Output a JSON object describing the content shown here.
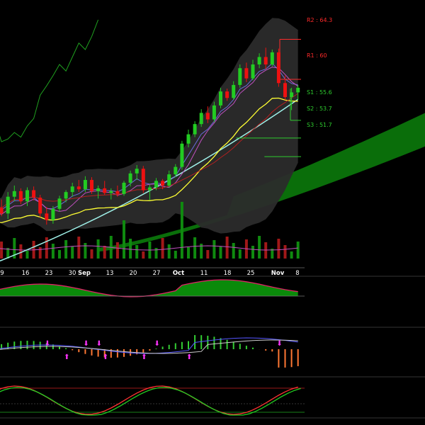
{
  "chart_data": {
    "type": "candlestick",
    "x_tick_labels": [
      "9",
      "16",
      "23",
      "30",
      "Sep",
      "13",
      "20",
      "27",
      "Oct",
      "11",
      "18",
      "25",
      "Nov",
      "8"
    ],
    "price_range": [
      40,
      67
    ],
    "levels": [
      {
        "name": "R2",
        "label": "R2 : 64.3",
        "value": 64.3,
        "color": "#ff2a2a"
      },
      {
        "name": "R1",
        "label": "R1 : 60",
        "value": 60.0,
        "color": "#ff2a2a"
      },
      {
        "name": "S1",
        "label": "S1 : 55.6",
        "value": 55.6,
        "color": "#2ecc2e"
      },
      {
        "name": "S2",
        "label": "S2 : 53.7",
        "value": 53.7,
        "color": "#2ecc2e"
      },
      {
        "name": "S3",
        "label": "S3 : 51.7",
        "value": 51.7,
        "color": "#2ecc2e"
      }
    ],
    "candles": [
      [
        45.2,
        46.8,
        44.6,
        46.2
      ],
      [
        46.2,
        47.1,
        45.3,
        45.6
      ],
      [
        45.6,
        47.9,
        45.0,
        47.4
      ],
      [
        47.4,
        48.6,
        46.9,
        48.0
      ],
      [
        48.0,
        48.3,
        46.6,
        46.9
      ],
      [
        46.9,
        48.4,
        46.4,
        48.1
      ],
      [
        48.1,
        48.5,
        47.0,
        47.3
      ],
      [
        47.3,
        47.6,
        45.2,
        45.6
      ],
      [
        45.6,
        46.3,
        44.4,
        44.9
      ],
      [
        44.9,
        46.4,
        44.5,
        46.1
      ],
      [
        46.1,
        47.5,
        45.8,
        47.2
      ],
      [
        47.2,
        48.1,
        46.8,
        47.9
      ],
      [
        47.9,
        48.9,
        47.4,
        48.5
      ],
      [
        48.5,
        49.2,
        47.9,
        48.2
      ],
      [
        48.2,
        49.6,
        47.9,
        49.2
      ],
      [
        49.2,
        49.5,
        47.7,
        48.0
      ],
      [
        48.0,
        48.6,
        47.2,
        48.3
      ],
      [
        48.3,
        49.1,
        47.6,
        47.8
      ],
      [
        47.8,
        48.3,
        47.1,
        48.0
      ],
      [
        48.0,
        48.6,
        47.4,
        47.7
      ],
      [
        47.7,
        49.1,
        47.5,
        48.9
      ],
      [
        48.9,
        50.2,
        48.5,
        49.9
      ],
      [
        49.9,
        50.8,
        49.2,
        50.4
      ],
      [
        50.4,
        50.7,
        47.8,
        48.1
      ],
      [
        48.1,
        48.7,
        47.0,
        48.4
      ],
      [
        48.4,
        49.4,
        48.1,
        49.1
      ],
      [
        49.1,
        49.3,
        48.2,
        48.6
      ],
      [
        48.6,
        50.2,
        48.4,
        49.8
      ],
      [
        49.8,
        50.9,
        49.5,
        50.6
      ],
      [
        50.6,
        53.4,
        50.3,
        53.1
      ],
      [
        53.1,
        54.6,
        52.7,
        54.1
      ],
      [
        54.1,
        55.5,
        53.8,
        55.2
      ],
      [
        55.2,
        56.8,
        54.9,
        56.4
      ],
      [
        56.4,
        57.1,
        55.3,
        55.7
      ],
      [
        55.7,
        57.6,
        55.4,
        57.2
      ],
      [
        57.2,
        59.1,
        56.9,
        58.7
      ],
      [
        58.7,
        59.0,
        57.7,
        58.0
      ],
      [
        58.0,
        59.8,
        57.8,
        59.4
      ],
      [
        59.4,
        61.6,
        59.1,
        61.2
      ],
      [
        61.2,
        61.8,
        59.7,
        60.1
      ],
      [
        60.1,
        62.1,
        59.9,
        61.6
      ],
      [
        61.6,
        62.8,
        61.2,
        62.4
      ],
      [
        62.4,
        63.4,
        61.1,
        61.6
      ],
      [
        61.6,
        63.2,
        61.4,
        62.9
      ],
      [
        62.9,
        63.3,
        59.2,
        59.6
      ],
      [
        59.6,
        60.4,
        57.8,
        58.1
      ],
      [
        58.1,
        59.1,
        56.7,
        58.6
      ],
      [
        58.6,
        59.4,
        57.8,
        59.1
      ]
    ]
  }
}
